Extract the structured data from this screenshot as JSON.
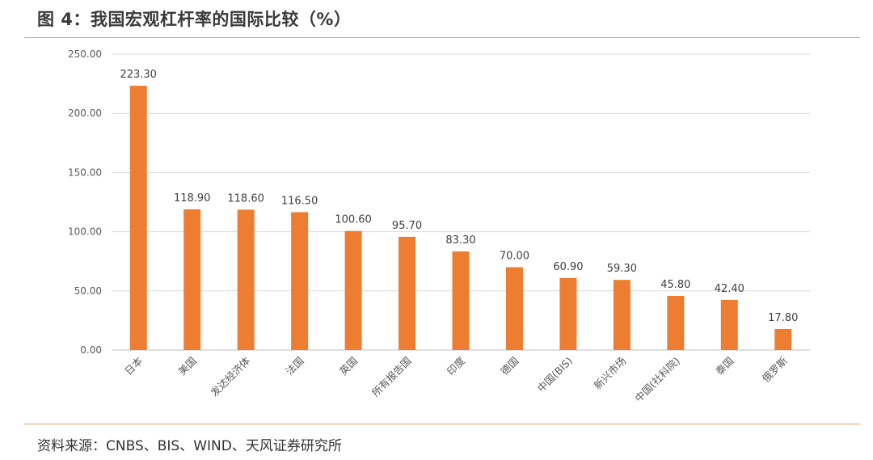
{
  "figure": {
    "title": "图 4：我国宏观杠杆率的国际比较（%）",
    "source": "资料来源：CNBS、BIS、WIND、天风证券研究所"
  },
  "colors": {
    "bar": "#ed7d31",
    "accent_rule": "#f0a055",
    "grid": "#d9d9d9"
  },
  "chart_data": {
    "type": "bar",
    "title": "",
    "xlabel": "",
    "ylabel": "",
    "categories": [
      "日本",
      "美国",
      "发达经济体",
      "法国",
      "英国",
      "所有报告国",
      "印度",
      "德国",
      "中国(BIS)",
      "新兴市场",
      "中国(社科院)",
      "泰国",
      "俄罗斯"
    ],
    "values": [
      223.3,
      118.9,
      118.6,
      116.5,
      100.6,
      95.7,
      83.3,
      70.0,
      60.9,
      59.3,
      45.8,
      42.4,
      17.8
    ],
    "value_labels": [
      "223.30",
      "118.90",
      "118.60",
      "116.50",
      "100.60",
      "95.70",
      "83.30",
      "70.00",
      "60.90",
      "59.30",
      "45.80",
      "42.40",
      "17.80"
    ],
    "yticks": [
      0,
      50,
      100,
      150,
      200,
      250
    ],
    "ytick_labels": [
      "0.00",
      "50.00",
      "100.00",
      "150.00",
      "200.00",
      "250.00"
    ],
    "ylim": [
      0,
      250
    ],
    "grid": true,
    "legend": "none"
  }
}
